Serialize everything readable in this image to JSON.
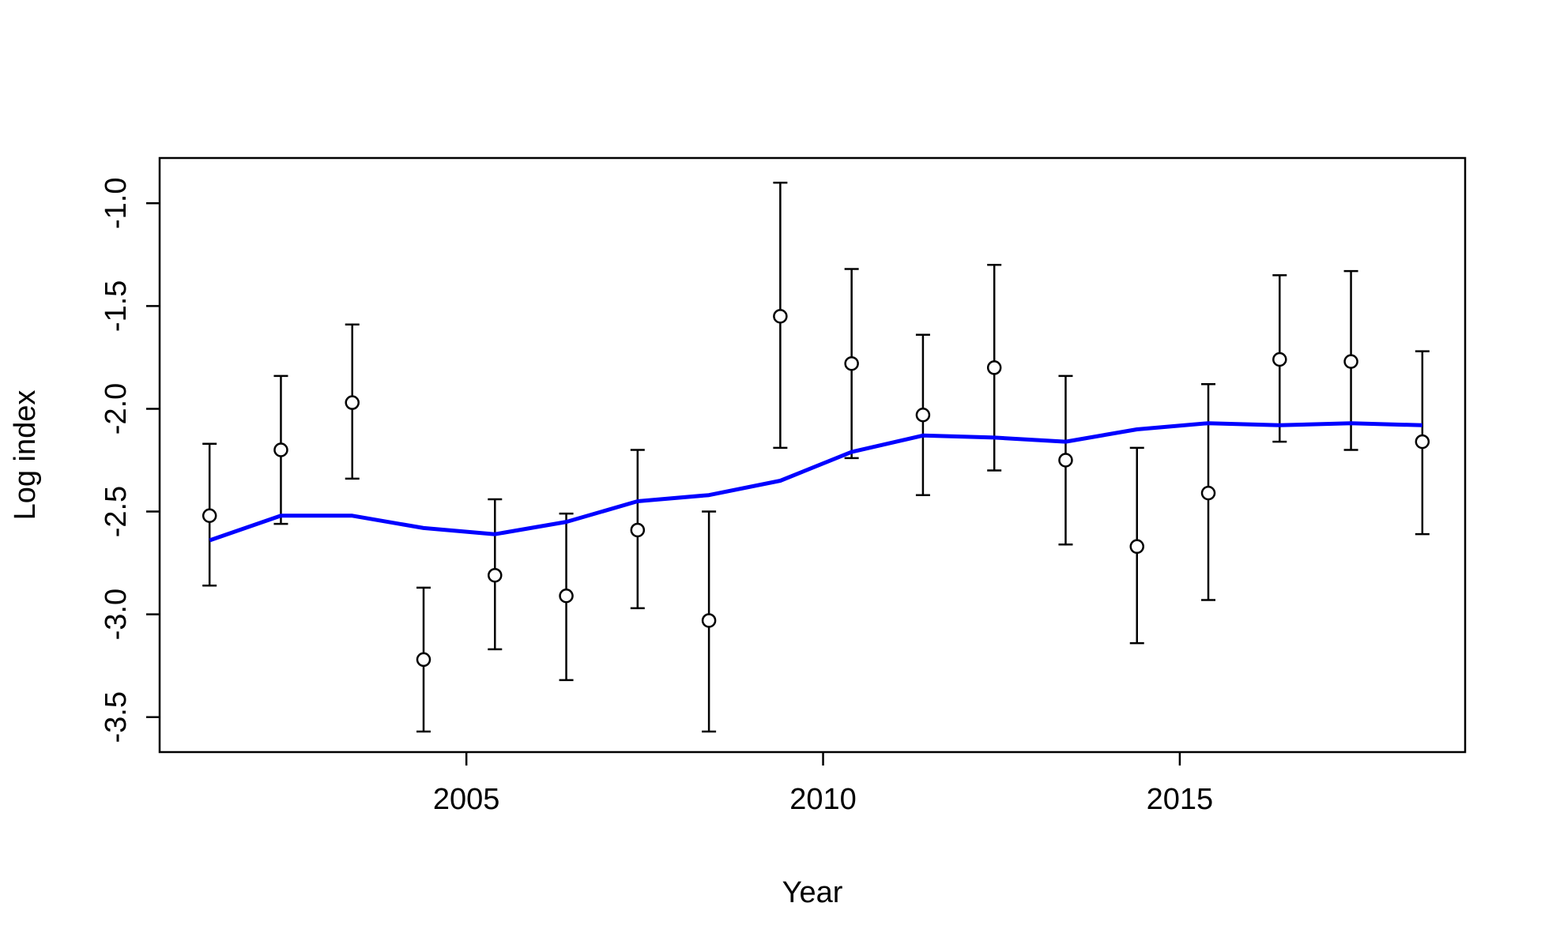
{
  "chart_data": {
    "type": "scatter",
    "title": "",
    "xlabel": "Year",
    "ylabel": "Log index",
    "xlim": [
      2000.7,
      2019.0
    ],
    "ylim": [
      -3.67,
      -0.78
    ],
    "x_ticks": [
      {
        "value": 2005,
        "label": "2005"
      },
      {
        "value": 2010,
        "label": "2010"
      },
      {
        "value": 2015,
        "label": "2015"
      }
    ],
    "y_ticks": [
      {
        "value": -3.5,
        "label": "-3.5"
      },
      {
        "value": -3.0,
        "label": "-3.0"
      },
      {
        "value": -2.5,
        "label": "-2.5"
      },
      {
        "value": -2.0,
        "label": "-2.0"
      },
      {
        "value": -1.5,
        "label": "-1.5"
      },
      {
        "value": -1.0,
        "label": "-1.0"
      }
    ],
    "grid": false,
    "series": [
      {
        "kind": "points_with_error_bars",
        "color": "#000000",
        "points": [
          {
            "x": 2001.4,
            "y": -2.52,
            "lo": -2.86,
            "hi": -2.17
          },
          {
            "x": 2002.4,
            "y": -2.2,
            "lo": -2.56,
            "hi": -1.84
          },
          {
            "x": 2003.4,
            "y": -1.97,
            "lo": -2.34,
            "hi": -1.59
          },
          {
            "x": 2004.4,
            "y": -3.22,
            "lo": -3.57,
            "hi": -2.87
          },
          {
            "x": 2005.4,
            "y": -2.81,
            "lo": -3.17,
            "hi": -2.44
          },
          {
            "x": 2006.4,
            "y": -2.91,
            "lo": -3.32,
            "hi": -2.51
          },
          {
            "x": 2007.4,
            "y": -2.59,
            "lo": -2.97,
            "hi": -2.2
          },
          {
            "x": 2008.4,
            "y": -3.03,
            "lo": -3.57,
            "hi": -2.5
          },
          {
            "x": 2009.4,
            "y": -1.55,
            "lo": -2.19,
            "hi": -0.9
          },
          {
            "x": 2010.4,
            "y": -1.78,
            "lo": -2.24,
            "hi": -1.32
          },
          {
            "x": 2011.4,
            "y": -2.03,
            "lo": -2.42,
            "hi": -1.64
          },
          {
            "x": 2012.4,
            "y": -1.8,
            "lo": -2.3,
            "hi": -1.3
          },
          {
            "x": 2013.4,
            "y": -2.25,
            "lo": -2.66,
            "hi": -1.84
          },
          {
            "x": 2014.4,
            "y": -2.67,
            "lo": -3.14,
            "hi": -2.19
          },
          {
            "x": 2015.4,
            "y": -2.41,
            "lo": -2.93,
            "hi": -1.88
          },
          {
            "x": 2016.4,
            "y": -1.76,
            "lo": -2.16,
            "hi": -1.35
          },
          {
            "x": 2017.4,
            "y": -1.77,
            "lo": -2.2,
            "hi": -1.33
          },
          {
            "x": 2018.4,
            "y": -2.16,
            "lo": -2.61,
            "hi": -1.72
          }
        ]
      },
      {
        "kind": "line",
        "color": "#0000ff",
        "points": [
          {
            "x": 2001.4,
            "y": -2.64
          },
          {
            "x": 2002.4,
            "y": -2.52
          },
          {
            "x": 2003.4,
            "y": -2.52
          },
          {
            "x": 2004.4,
            "y": -2.58
          },
          {
            "x": 2005.4,
            "y": -2.61
          },
          {
            "x": 2006.4,
            "y": -2.55
          },
          {
            "x": 2007.4,
            "y": -2.45
          },
          {
            "x": 2008.4,
            "y": -2.42
          },
          {
            "x": 2009.4,
            "y": -2.35
          },
          {
            "x": 2010.4,
            "y": -2.21
          },
          {
            "x": 2011.4,
            "y": -2.13
          },
          {
            "x": 2012.4,
            "y": -2.14
          },
          {
            "x": 2013.4,
            "y": -2.16
          },
          {
            "x": 2014.4,
            "y": -2.1
          },
          {
            "x": 2015.4,
            "y": -2.07
          },
          {
            "x": 2016.4,
            "y": -2.08
          },
          {
            "x": 2017.4,
            "y": -2.07
          },
          {
            "x": 2018.4,
            "y": -2.08
          }
        ]
      }
    ]
  }
}
